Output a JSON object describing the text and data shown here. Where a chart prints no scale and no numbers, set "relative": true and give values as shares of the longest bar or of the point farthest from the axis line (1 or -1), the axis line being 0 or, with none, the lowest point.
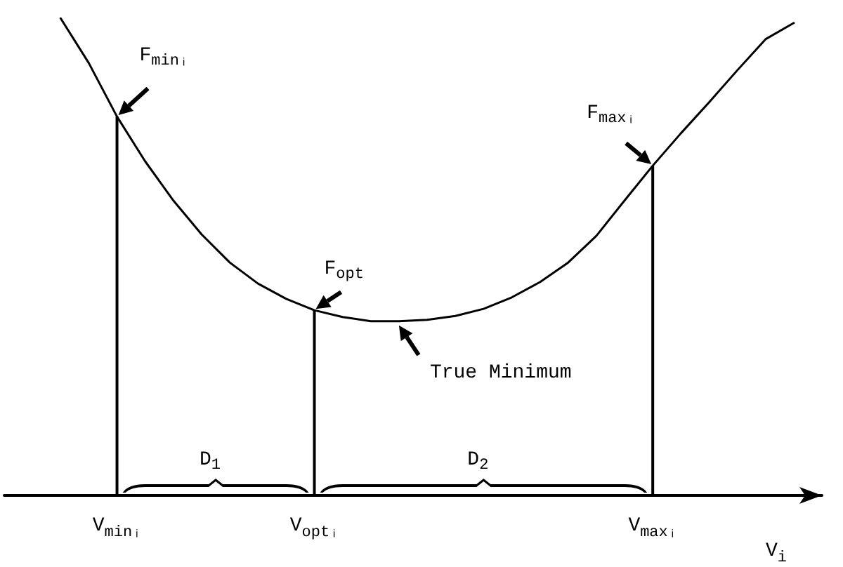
{
  "chart_data": {
    "type": "line",
    "relative": true,
    "xlabel": "V$_{i}$",
    "categories": [
      null,
      null,
      null,
      null,
      "V$_{minᵢ}$",
      null,
      null,
      null,
      null,
      null,
      null,
      "V$_{optᵢ}$",
      null,
      null,
      null,
      null,
      null,
      null,
      null,
      null,
      null,
      null,
      null,
      "V$_{maxᵢ}$",
      null,
      null,
      null,
      null,
      null,
      null
    ],
    "series": [
      {
        "color": "#000000",
        "values": [
          null,
          null,
          1,
          0.906,
          0.794,
          0.7,
          0.618,
          0.547,
          0.488,
          0.444,
          0.412,
          0.388,
          0.374,
          0.365,
          0.365,
          0.368,
          0.376,
          0.391,
          0.415,
          0.447,
          0.488,
          0.544,
          0.618,
          0.691,
          0.759,
          0.824,
          0.891,
          0.956,
          0.99,
          null
        ]
      },
      {
        "type": "bar",
        "color": "#000000",
        "values": [
          null,
          null,
          null,
          null,
          0.794,
          null,
          null,
          null,
          null,
          null,
          null,
          0.388,
          null,
          null,
          null,
          null,
          null,
          null,
          null,
          null,
          null,
          null,
          null,
          0.691,
          null,
          null,
          null,
          null,
          null,
          null
        ]
      }
    ],
    "annotations": [
      {
        "text": "F$_{minᵢ}$",
        "x": "V$_{minᵢ}$",
        "y": 0.794
      },
      {
        "text": "F$_{opt}$",
        "x": "V$_{optᵢ}$",
        "y": 0.388
      },
      {
        "text": "F$_{maxᵢ}$",
        "x": "V$_{maxᵢ}$",
        "y": 0.691
      },
      "True Minimum",
      "D$_{1}$",
      "D$_{2}$"
    ],
    "marker": "none",
    "line_style": "solid"
  }
}
